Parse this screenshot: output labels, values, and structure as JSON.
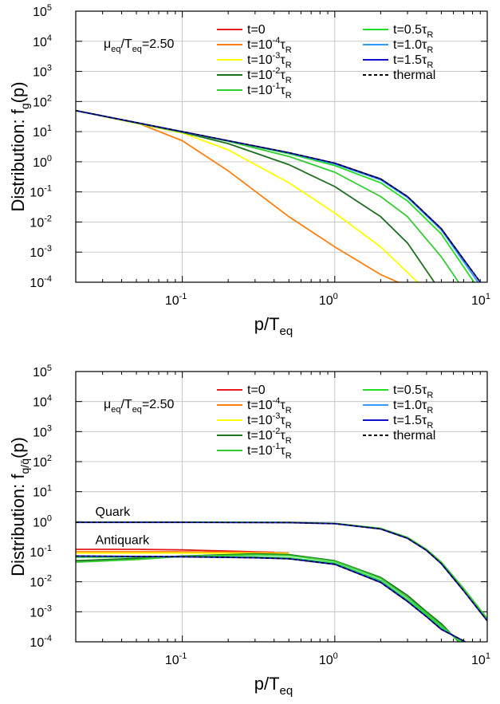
{
  "colors": {
    "t0": "#e41a1c",
    "t1e-4": "#ff7f0e",
    "t1e-3": "#ffff00",
    "t1e-2": "#1e6f1e",
    "t1e-1": "#33cc33",
    "t0.5": "#22dd22",
    "t1.0": "#3399ff",
    "t1.5": "#1010cc",
    "thermal": "#000000"
  },
  "chart_data": [
    {
      "type": "line",
      "log_x": true,
      "log_y": true,
      "xlim": [
        0.02,
        10
      ],
      "ylim": [
        0.0001,
        100000
      ],
      "grid": true,
      "legend_placement": "top-right",
      "xlabel": {
        "main": "p/T",
        "sub": "eq"
      },
      "ylabel": {
        "main": "Distribution: f",
        "sub": "g",
        "tail": "(p)"
      },
      "annotation": {
        "main": "μ",
        "sub1": "eq",
        "mid": "/T",
        "sub2": "eq",
        "tail": "=2.50"
      },
      "x_ticks": [
        {
          "base": "10",
          "exp": "-1"
        },
        {
          "base": "10",
          "exp": "0"
        },
        {
          "base": "10",
          "exp": "1"
        }
      ],
      "y_ticks": [
        {
          "base": "10",
          "exp": "-4"
        },
        {
          "base": "10",
          "exp": "-3"
        },
        {
          "base": "10",
          "exp": "-2"
        },
        {
          "base": "10",
          "exp": "-1"
        },
        {
          "base": "10",
          "exp": "0"
        },
        {
          "base": "10",
          "exp": "1"
        },
        {
          "base": "10",
          "exp": "2"
        },
        {
          "base": "10",
          "exp": "3"
        },
        {
          "base": "10",
          "exp": "4"
        },
        {
          "base": "10",
          "exp": "5"
        }
      ],
      "legend": [
        {
          "key": "t0",
          "pre": "t=0",
          "sup": "",
          "tau": "",
          "sub": ""
        },
        {
          "key": "t1e-4",
          "pre": "t=10",
          "sup": "-4",
          "tau": "τ",
          "sub": "R"
        },
        {
          "key": "t1e-3",
          "pre": "t=10",
          "sup": "-3",
          "tau": "τ",
          "sub": "R"
        },
        {
          "key": "t1e-2",
          "pre": "t=10",
          "sup": "-2",
          "tau": "τ",
          "sub": "R"
        },
        {
          "key": "t1e-1",
          "pre": "t=10",
          "sup": "-1",
          "tau": "τ",
          "sub": "R"
        },
        {
          "key": "t0.5",
          "pre": "t=0.5",
          "sup": "",
          "tau": "τ",
          "sub": "R"
        },
        {
          "key": "t1.0",
          "pre": "t=1.0",
          "sup": "",
          "tau": "τ",
          "sub": "R"
        },
        {
          "key": "t1.5",
          "pre": "t=1.5",
          "sup": "",
          "tau": "τ",
          "sub": "R"
        },
        {
          "key": "thermal",
          "pre": "thermal",
          "sup": "",
          "tau": "",
          "sub": "",
          "dashed": true
        }
      ],
      "series": [
        {
          "key": "t1e-4",
          "x": [
            0.02,
            0.05,
            0.1,
            0.2,
            0.5,
            1.0,
            2.0,
            2.6
          ],
          "y": [
            50,
            20,
            5,
            0.5,
            0.015,
            0.0015,
            0.00018,
            0.0001
          ]
        },
        {
          "key": "t1e-3",
          "x": [
            0.02,
            0.1,
            0.2,
            0.5,
            1.0,
            2.0,
            3.5
          ],
          "y": [
            50,
            9,
            2.5,
            0.2,
            0.02,
            0.0015,
            0.0001
          ]
        },
        {
          "key": "t1e-2",
          "x": [
            0.02,
            0.1,
            0.2,
            0.5,
            1.0,
            2.0,
            3.0,
            4.5
          ],
          "y": [
            50,
            9.5,
            4,
            0.8,
            0.15,
            0.015,
            0.002,
            0.0001
          ]
        },
        {
          "key": "t1e-1",
          "x": [
            0.02,
            0.1,
            0.2,
            0.5,
            1.0,
            2.0,
            3.0,
            5.0,
            6.5
          ],
          "y": [
            50,
            9.7,
            4.8,
            1.5,
            0.45,
            0.07,
            0.015,
            0.0007,
            0.0001
          ]
        },
        {
          "key": "t0.5",
          "x": [
            0.02,
            0.1,
            0.2,
            0.5,
            1.0,
            2.0,
            3.0,
            5.0,
            8.2
          ],
          "y": [
            50,
            9.8,
            4.9,
            1.85,
            0.75,
            0.2,
            0.05,
            0.004,
            0.0001
          ]
        },
        {
          "key": "t1.0",
          "x": [
            0.02,
            0.1,
            0.2,
            0.5,
            1.0,
            2.0,
            3.0,
            5.0,
            8.7
          ],
          "y": [
            50,
            9.9,
            4.95,
            1.95,
            0.85,
            0.25,
            0.065,
            0.0055,
            0.0001
          ]
        },
        {
          "key": "t1.5",
          "x": [
            0.02,
            0.1,
            0.2,
            0.5,
            1.0,
            2.0,
            3.0,
            5.0,
            9.0
          ],
          "y": [
            50,
            10,
            5,
            2,
            0.9,
            0.27,
            0.07,
            0.006,
            0.0001
          ]
        },
        {
          "key": "thermal",
          "x": [
            0.02,
            0.1,
            0.2,
            0.5,
            1.0,
            2.0,
            3.0,
            5.0,
            9.0
          ],
          "y": [
            50,
            10,
            5,
            2,
            0.9,
            0.27,
            0.07,
            0.006,
            0.0001
          ]
        }
      ]
    },
    {
      "type": "line",
      "log_x": true,
      "log_y": true,
      "xlim": [
        0.02,
        10
      ],
      "ylim": [
        0.0001,
        100000
      ],
      "grid": true,
      "legend_placement": "top-right",
      "xlabel": {
        "main": "p/T",
        "sub": "eq"
      },
      "ylabel": {
        "main": "Distribution: f",
        "sub": "q/q̄",
        "tail": "(p)"
      },
      "annotation": {
        "main": "μ",
        "sub1": "eq",
        "mid": "/T",
        "sub2": "eq",
        "tail": "=2.50"
      },
      "labels": [
        {
          "text": "Quark",
          "x": 0.025,
          "y": 1.4
        },
        {
          "text": "Antiquark",
          "x": 0.025,
          "y": 0.16
        }
      ],
      "x_ticks": [
        {
          "base": "10",
          "exp": "-1"
        },
        {
          "base": "10",
          "exp": "0"
        },
        {
          "base": "10",
          "exp": "1"
        }
      ],
      "y_ticks": [
        {
          "base": "10",
          "exp": "-4"
        },
        {
          "base": "10",
          "exp": "-3"
        },
        {
          "base": "10",
          "exp": "-2"
        },
        {
          "base": "10",
          "exp": "-1"
        },
        {
          "base": "10",
          "exp": "0"
        },
        {
          "base": "10",
          "exp": "1"
        },
        {
          "base": "10",
          "exp": "2"
        },
        {
          "base": "10",
          "exp": "3"
        },
        {
          "base": "10",
          "exp": "4"
        },
        {
          "base": "10",
          "exp": "5"
        }
      ],
      "legend": [
        {
          "key": "t0",
          "pre": "t=0",
          "sup": "",
          "tau": "",
          "sub": ""
        },
        {
          "key": "t1e-4",
          "pre": "t=10",
          "sup": "-4",
          "tau": "τ",
          "sub": "R"
        },
        {
          "key": "t1e-3",
          "pre": "t=10",
          "sup": "-3",
          "tau": "τ",
          "sub": "R"
        },
        {
          "key": "t1e-2",
          "pre": "t=10",
          "sup": "-2",
          "tau": "τ",
          "sub": "R"
        },
        {
          "key": "t1e-1",
          "pre": "t=10",
          "sup": "-1",
          "tau": "τ",
          "sub": "R"
        },
        {
          "key": "t0.5",
          "pre": "t=0.5",
          "sup": "",
          "tau": "τ",
          "sub": "R"
        },
        {
          "key": "t1.0",
          "pre": "t=1.0",
          "sup": "",
          "tau": "τ",
          "sub": "R"
        },
        {
          "key": "t1.5",
          "pre": "t=1.5",
          "sup": "",
          "tau": "τ",
          "sub": "R"
        },
        {
          "key": "thermal",
          "pre": "thermal",
          "sup": "",
          "tau": "",
          "sub": "",
          "dashed": true
        }
      ],
      "series": [
        {
          "key": "t1e-1",
          "x": [
            0.02,
            0.1,
            0.5,
            1.0,
            2.0,
            3.0,
            4.0,
            5.0,
            7.0,
            10.0
          ],
          "y": [
            0.97,
            0.97,
            0.95,
            0.88,
            0.6,
            0.3,
            0.12,
            0.045,
            0.006,
            0.0006
          ]
        },
        {
          "key": "t1.5",
          "x": [
            0.02,
            0.1,
            0.5,
            1.0,
            2.0,
            3.0,
            4.0,
            5.0,
            7.0,
            10.0
          ],
          "y": [
            0.95,
            0.95,
            0.93,
            0.86,
            0.57,
            0.28,
            0.11,
            0.04,
            0.005,
            0.0005
          ]
        },
        {
          "key": "thermal",
          "x": [
            0.02,
            0.1,
            0.5,
            1.0,
            2.0,
            3.0,
            4.0,
            5.0,
            7.0,
            10.0
          ],
          "y": [
            0.95,
            0.95,
            0.93,
            0.86,
            0.57,
            0.28,
            0.11,
            0.04,
            0.005,
            0.0005
          ]
        },
        {
          "key": "t0",
          "x": [
            0.02,
            0.05,
            0.1,
            0.2,
            0.4
          ],
          "y": [
            0.12,
            0.12,
            0.115,
            0.105,
            0.095
          ]
        },
        {
          "key": "t1e-4",
          "x": [
            0.02,
            0.1,
            0.3,
            0.5
          ],
          "y": [
            0.1,
            0.1,
            0.095,
            0.09
          ]
        },
        {
          "key": "t1e-3",
          "x": [
            0.02,
            0.1,
            0.3,
            0.5
          ],
          "y": [
            0.09,
            0.09,
            0.088,
            0.085
          ]
        },
        {
          "key": "t1e-2",
          "x": [
            0.02,
            0.05,
            0.1,
            0.3,
            0.5,
            1.0,
            2.0,
            3.0,
            4.0,
            5.0,
            6.5
          ],
          "y": [
            0.05,
            0.06,
            0.072,
            0.085,
            0.08,
            0.05,
            0.014,
            0.0035,
            0.001,
            0.0004,
            0.0001
          ]
        },
        {
          "key": "t1e-1",
          "x": [
            0.02,
            0.05,
            0.1,
            0.3,
            0.5,
            1.0,
            2.0,
            3.0,
            4.0,
            5.0,
            6.6
          ],
          "y": [
            0.045,
            0.055,
            0.07,
            0.08,
            0.075,
            0.048,
            0.013,
            0.003,
            0.0009,
            0.00035,
            0.0001
          ]
        },
        {
          "key": "t0.5",
          "x": [
            0.02,
            0.1,
            0.3,
            0.5,
            1.0,
            2.0,
            3.0,
            4.0,
            5.0,
            6.9
          ],
          "y": [
            0.065,
            0.068,
            0.068,
            0.063,
            0.042,
            0.011,
            0.0025,
            0.0008,
            0.0003,
            0.0001
          ]
        },
        {
          "key": "t1.0",
          "x": [
            0.02,
            0.1,
            0.3,
            0.5,
            1.0,
            2.0,
            3.0,
            4.0,
            5.0,
            7.1
          ],
          "y": [
            0.07,
            0.068,
            0.064,
            0.059,
            0.039,
            0.01,
            0.0023,
            0.0007,
            0.00027,
            0.0001
          ]
        },
        {
          "key": "t1.5",
          "x": [
            0.02,
            0.1,
            0.3,
            0.5,
            1.0,
            2.0,
            3.0,
            4.0,
            5.0,
            7.2
          ],
          "y": [
            0.072,
            0.068,
            0.063,
            0.058,
            0.038,
            0.0095,
            0.0022,
            0.00068,
            0.00026,
            0.0001
          ]
        },
        {
          "key": "thermal",
          "x": [
            0.02,
            0.1,
            0.3,
            0.5,
            1.0,
            2.0,
            3.0,
            4.0,
            5.0,
            7.2
          ],
          "y": [
            0.072,
            0.068,
            0.063,
            0.058,
            0.038,
            0.0095,
            0.0022,
            0.00068,
            0.00026,
            0.0001
          ]
        }
      ]
    }
  ]
}
